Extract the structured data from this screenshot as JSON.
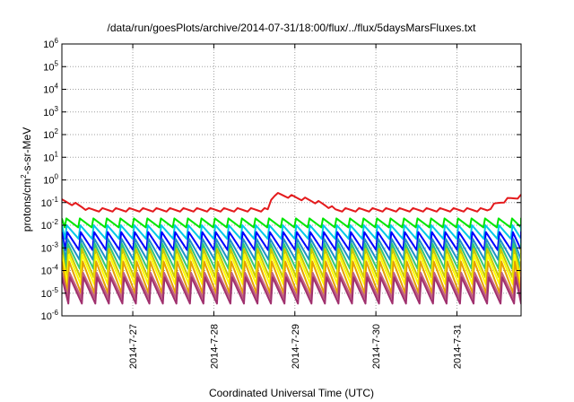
{
  "chart_data": {
    "type": "line",
    "title": "/data/run/goesPlots/archive/2014-07-31/18:00/flux/../flux/5daysMarsFluxes.txt",
    "xlabel": "Coordinated Universal Time (UTC)",
    "ylabel": "protons/cm2-s-sr-MeV",
    "ylabel_parts": {
      "pre": "protons/cm",
      "sup": "2",
      "post": "-s-sr-MeV"
    },
    "y_scale": "log",
    "ylim": [
      1e-06,
      1000000.0
    ],
    "xlim_days": [
      "2014-07-26 03:00",
      "2014-07-31 19:00"
    ],
    "y_ticks": [
      {
        "base": "10",
        "exp": "-6"
      },
      {
        "base": "10",
        "exp": "-5"
      },
      {
        "base": "10",
        "exp": "-4"
      },
      {
        "base": "10",
        "exp": "-3"
      },
      {
        "base": "10",
        "exp": "-2"
      },
      {
        "base": "10",
        "exp": "-1"
      },
      {
        "base": "10",
        "exp": "0"
      },
      {
        "base": "10",
        "exp": "1"
      },
      {
        "base": "10",
        "exp": "2"
      },
      {
        "base": "10",
        "exp": "3"
      },
      {
        "base": "10",
        "exp": "4"
      },
      {
        "base": "10",
        "exp": "5"
      },
      {
        "base": "10",
        "exp": "6"
      }
    ],
    "x_ticks": [
      "2014-7-27",
      "2014-7-28",
      "2014-7-29",
      "2014-7-30",
      "2014-7-31"
    ],
    "grid": true,
    "legend": "none",
    "cycle_period_hours": 4,
    "series": [
      {
        "color": "#e41a1c",
        "baseline": 0.045,
        "start": 0.11,
        "event_peak": 0.22,
        "event_time": "2014-07-28 18:00",
        "end": 0.18,
        "sawtooth_amplitude": 1.6
      },
      {
        "color": "#00e600",
        "high": 0.02,
        "low": 0.008
      },
      {
        "color": "#00c8e6",
        "high": 0.01,
        "low": 0.0025
      },
      {
        "color": "#0000ff",
        "high": 0.005,
        "low": 0.0008
      },
      {
        "color": "#1e90c8",
        "high": 0.0025,
        "low": 0.0003
      },
      {
        "color": "#32c878",
        "high": 0.0015,
        "low": 0.00012
      },
      {
        "color": "#c8c800",
        "high": 0.0009,
        "low": 5e-05
      },
      {
        "color": "#ffff00",
        "high": 0.0005,
        "low": 2.5e-05
      },
      {
        "color": "#e6a000",
        "high": 0.00025,
        "low": 1e-05
      },
      {
        "color": "#c06080",
        "high": 8e-05,
        "low": 6e-06
      },
      {
        "color": "#a0306e",
        "high": 5e-05,
        "low": 3.5e-06
      }
    ]
  }
}
